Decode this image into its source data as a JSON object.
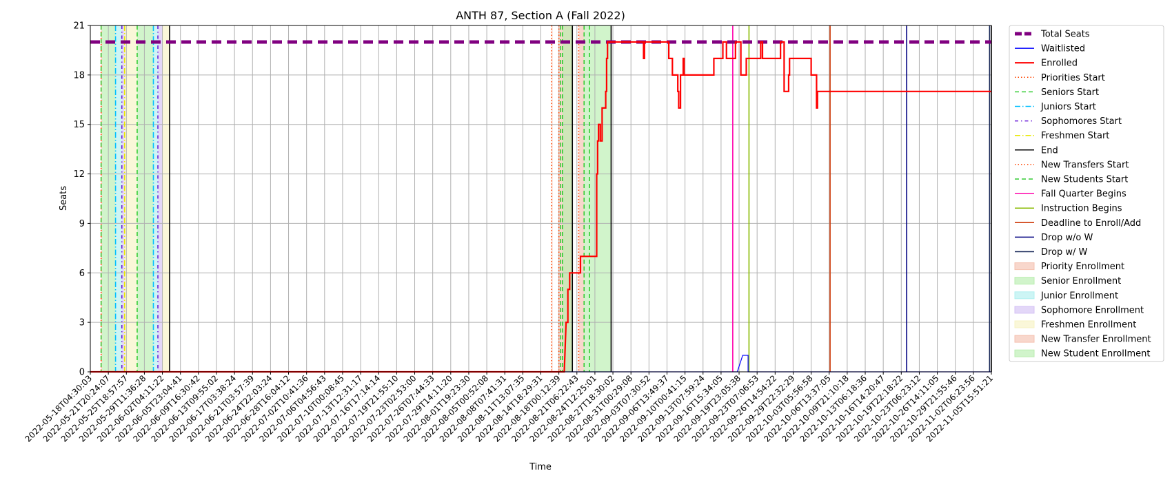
{
  "chart_data": {
    "type": "line",
    "title": "ANTH 87, Section A (Fall 2022)",
    "xlabel": "Time",
    "ylabel": "Seats",
    "ylim": [
      0,
      21
    ],
    "yticks": [
      0,
      3,
      6,
      9,
      12,
      15,
      18,
      21
    ],
    "grid": true,
    "legend_position": "outside right",
    "x_range": [
      "2022-05-18T04:30:03",
      "2022-11-05T15:51:21"
    ],
    "xticks": [
      "2022-05-18T04:30:03",
      "2022-05-21T20:24:07",
      "2022-05-25T18:57:57",
      "2022-05-29T11:36:28",
      "2022-06-02T04:11:22",
      "2022-06-05T23:04:41",
      "2022-06-09T16:30:42",
      "2022-06-13T09:55:02",
      "2022-06-17T03:38:24",
      "2022-06-21T03:57:39",
      "2022-06-24T22:03:24",
      "2022-06-28T16:04:12",
      "2022-07-02T10:41:36",
      "2022-07-06T04:56:43",
      "2022-07-10T00:08:45",
      "2022-07-13T12:31:17",
      "2022-07-16T17:14:14",
      "2022-07-19T21:55:10",
      "2022-07-23T02:53:00",
      "2022-07-26T07:44:33",
      "2022-07-29T14:11:20",
      "2022-08-01T19:23:30",
      "2022-08-05T00:52:08",
      "2022-08-08T07:41:31",
      "2022-08-11T13:07:35",
      "2022-08-14T18:29:31",
      "2022-08-18T00:12:39",
      "2022-08-21T06:22:43",
      "2022-08-24T12:25:01",
      "2022-08-27T18:30:02",
      "2022-08-31T00:29:08",
      "2022-09-03T07:30:52",
      "2022-09-06T13:49:37",
      "2022-09-10T00:41:15",
      "2022-09-13T07:59:24",
      "2022-09-16T15:34:05",
      "2022-09-19T23:05:38",
      "2022-09-23T07:06:53",
      "2022-09-26T14:54:22",
      "2022-09-29T22:32:29",
      "2022-10-03T05:56:58",
      "2022-10-06T13:37:05",
      "2022-10-09T21:10:18",
      "2022-10-13T06:18:36",
      "2022-10-16T14:20:47",
      "2022-10-19T22:18:22",
      "2022-10-23T06:23:12",
      "2022-10-26T14:11:05",
      "2022-10-29T21:55:46",
      "2022-11-02T06:23:56",
      "2022-11-05T15:51:21"
    ],
    "series": [
      {
        "name": "Total Seats",
        "color": "#800080",
        "style": "dashed-thick",
        "points": [
          [
            0,
            20
          ],
          [
            50,
            20
          ]
        ]
      },
      {
        "name": "Waitlisted",
        "color": "#0000ff",
        "style": "step",
        "points": [
          [
            0,
            0
          ],
          [
            35.9,
            0
          ],
          [
            36.2,
            1
          ],
          [
            36.5,
            1
          ],
          [
            36.5,
            0
          ],
          [
            50,
            0
          ]
        ]
      },
      {
        "name": "Enrolled",
        "color": "#ff0000",
        "style": "step-thick",
        "points": [
          [
            0,
            0
          ],
          [
            26.3,
            0
          ],
          [
            26.4,
            3
          ],
          [
            26.5,
            3
          ],
          [
            26.5,
            5
          ],
          [
            26.6,
            5
          ],
          [
            26.6,
            6
          ],
          [
            27.2,
            6
          ],
          [
            27.2,
            7
          ],
          [
            28.1,
            7
          ],
          [
            28.1,
            12
          ],
          [
            28.15,
            12
          ],
          [
            28.15,
            14
          ],
          [
            28.2,
            14
          ],
          [
            28.2,
            15
          ],
          [
            28.3,
            15
          ],
          [
            28.3,
            14
          ],
          [
            28.4,
            14
          ],
          [
            28.4,
            16
          ],
          [
            28.6,
            16
          ],
          [
            28.6,
            17
          ],
          [
            28.65,
            17
          ],
          [
            28.65,
            19
          ],
          [
            28.7,
            19
          ],
          [
            28.7,
            20
          ],
          [
            30.7,
            20
          ],
          [
            30.7,
            19
          ],
          [
            30.75,
            19
          ],
          [
            30.75,
            20
          ],
          [
            32.1,
            20
          ],
          [
            32.1,
            19
          ],
          [
            32.3,
            19
          ],
          [
            32.3,
            18
          ],
          [
            32.6,
            18
          ],
          [
            32.6,
            17
          ],
          [
            32.65,
            17
          ],
          [
            32.65,
            16
          ],
          [
            32.75,
            16
          ],
          [
            32.75,
            18
          ],
          [
            32.9,
            18
          ],
          [
            32.9,
            19
          ],
          [
            32.95,
            19
          ],
          [
            32.95,
            18
          ],
          [
            34.6,
            18
          ],
          [
            34.6,
            19
          ],
          [
            35.1,
            19
          ],
          [
            35.1,
            20
          ],
          [
            35.3,
            20
          ],
          [
            35.3,
            19
          ],
          [
            35.8,
            19
          ],
          [
            35.8,
            20
          ],
          [
            36.1,
            20
          ],
          [
            36.1,
            18
          ],
          [
            36.4,
            18
          ],
          [
            36.4,
            19
          ],
          [
            37.2,
            19
          ],
          [
            37.2,
            20
          ],
          [
            37.3,
            20
          ],
          [
            37.3,
            19
          ],
          [
            38.3,
            19
          ],
          [
            38.3,
            20
          ],
          [
            38.5,
            20
          ],
          [
            38.5,
            17
          ],
          [
            38.75,
            17
          ],
          [
            38.75,
            18
          ],
          [
            38.8,
            18
          ],
          [
            38.8,
            19
          ],
          [
            40.0,
            19
          ],
          [
            40.0,
            18
          ],
          [
            40.3,
            18
          ],
          [
            40.3,
            16
          ],
          [
            40.35,
            16
          ],
          [
            40.35,
            17
          ],
          [
            50,
            17
          ]
        ]
      }
    ],
    "vertical_markers": [
      {
        "name": "Priorities Start",
        "color": "#ff4500",
        "style": "dotted",
        "x": [
          0.6,
          25.6,
          27.1
        ]
      },
      {
        "name": "Seniors Start",
        "color": "#33cc33",
        "style": "dashed",
        "x": [
          0.6,
          2.6,
          26.1,
          27.4
        ]
      },
      {
        "name": "Juniors Start",
        "color": "#00bfff",
        "style": "dashdot",
        "x": [
          1.4,
          3.5
        ]
      },
      {
        "name": "Sophomores Start",
        "color": "#6a1bd8",
        "style": "dashdot2",
        "x": [
          1.75,
          3.75
        ]
      },
      {
        "name": "Freshmen Start",
        "color": "#e8e800",
        "style": "dashdot",
        "x": [
          1.9
        ]
      },
      {
        "name": "End",
        "color": "#000000",
        "style": "solid",
        "x": [
          4.4,
          26.75,
          28.9,
          50
        ]
      },
      {
        "name": "New Transfers Start",
        "color": "#ff4500",
        "style": "dotted",
        "x": [
          26.0
        ]
      },
      {
        "name": "New Students Start",
        "color": "#33cc33",
        "style": "dashed",
        "x": [
          26.2,
          27.7
        ]
      },
      {
        "name": "Fall Quarter Begins",
        "color": "#ff00aa",
        "style": "solid",
        "x": [
          35.65
        ]
      },
      {
        "name": "Instruction Begins",
        "color": "#88bb00",
        "style": "solid",
        "x": [
          36.55
        ]
      },
      {
        "name": "Deadline to Enroll/Add",
        "color": "#cc3300",
        "style": "solid",
        "x": [
          41.05
        ]
      },
      {
        "name": "Drop w/o W",
        "color": "#000080",
        "style": "solid",
        "x": [
          45.3
        ]
      },
      {
        "name": "Drop w/ W",
        "color": "#1a2a5a",
        "style": "solid",
        "x": [
          49.9
        ]
      }
    ],
    "shaded_regions": [
      {
        "name": "Priority Enrollment",
        "color": "#f5c2b0",
        "spans": [
          [
            0.6,
            0.65
          ],
          [
            25.6,
            25.65
          ]
        ]
      },
      {
        "name": "Senior Enrollment",
        "color": "#b9eeaf",
        "spans": [
          [
            0.65,
            1.4
          ],
          [
            2.6,
            3.5
          ]
        ]
      },
      {
        "name": "Junior Enrollment",
        "color": "#b2f0f0",
        "spans": [
          [
            1.4,
            1.75
          ],
          [
            3.5,
            3.75
          ]
        ]
      },
      {
        "name": "Sophomore Enrollment",
        "color": "#d4c2f5",
        "spans": [
          [
            1.75,
            1.9
          ],
          [
            3.75,
            4.0
          ]
        ]
      },
      {
        "name": "Freshmen Enrollment",
        "color": "#f7f3c4",
        "spans": [
          [
            1.9,
            2.6
          ],
          [
            4.0,
            4.4
          ]
        ]
      },
      {
        "name": "New Transfer Enrollment",
        "color": "#f5c2b0",
        "spans": [
          [
            26.0,
            26.75
          ],
          [
            27.1,
            27.4
          ]
        ]
      },
      {
        "name": "New Student Enrollment",
        "color": "#b9eeaf",
        "spans": [
          [
            26.2,
            26.75
          ],
          [
            27.4,
            28.9
          ]
        ]
      }
    ],
    "legend": [
      {
        "label": "Total Seats",
        "kind": "line",
        "color": "#800080",
        "style": "dashed-thick"
      },
      {
        "label": "Waitlisted",
        "kind": "line",
        "color": "#0000ff",
        "style": "solid"
      },
      {
        "label": "Enrolled",
        "kind": "line",
        "color": "#ff0000",
        "style": "solid-thick"
      },
      {
        "label": "Priorities Start",
        "kind": "line",
        "color": "#ff4500",
        "style": "dotted"
      },
      {
        "label": "Seniors Start",
        "kind": "line",
        "color": "#33cc33",
        "style": "dashed"
      },
      {
        "label": "Juniors Start",
        "kind": "line",
        "color": "#00bfff",
        "style": "dashdot"
      },
      {
        "label": "Sophomores Start",
        "kind": "line",
        "color": "#6a1bd8",
        "style": "dashdot2"
      },
      {
        "label": "Freshmen Start",
        "kind": "line",
        "color": "#e8e800",
        "style": "dashdot"
      },
      {
        "label": "End",
        "kind": "line",
        "color": "#000000",
        "style": "solid"
      },
      {
        "label": "New Transfers Start",
        "kind": "line",
        "color": "#ff4500",
        "style": "dotted"
      },
      {
        "label": "New Students Start",
        "kind": "line",
        "color": "#33cc33",
        "style": "dashed"
      },
      {
        "label": "Fall Quarter Begins",
        "kind": "line",
        "color": "#ff00aa",
        "style": "solid"
      },
      {
        "label": "Instruction Begins",
        "kind": "line",
        "color": "#88bb00",
        "style": "solid"
      },
      {
        "label": "Deadline to Enroll/Add",
        "kind": "line",
        "color": "#cc3300",
        "style": "solid"
      },
      {
        "label": "Drop w/o W",
        "kind": "line",
        "color": "#000080",
        "style": "solid"
      },
      {
        "label": "Drop w/ W",
        "kind": "line",
        "color": "#1a2a5a",
        "style": "solid"
      },
      {
        "label": "Priority Enrollment",
        "kind": "patch",
        "color": "#f5c2b0"
      },
      {
        "label": "Senior Enrollment",
        "kind": "patch",
        "color": "#b9eeaf"
      },
      {
        "label": "Junior Enrollment",
        "kind": "patch",
        "color": "#b2f0f0"
      },
      {
        "label": "Sophomore Enrollment",
        "kind": "patch",
        "color": "#d4c2f5"
      },
      {
        "label": "Freshmen Enrollment",
        "kind": "patch",
        "color": "#f7f3c4"
      },
      {
        "label": "New Transfer Enrollment",
        "kind": "patch",
        "color": "#f5c2b0"
      },
      {
        "label": "New Student Enrollment",
        "kind": "patch",
        "color": "#b9eeaf"
      }
    ]
  }
}
